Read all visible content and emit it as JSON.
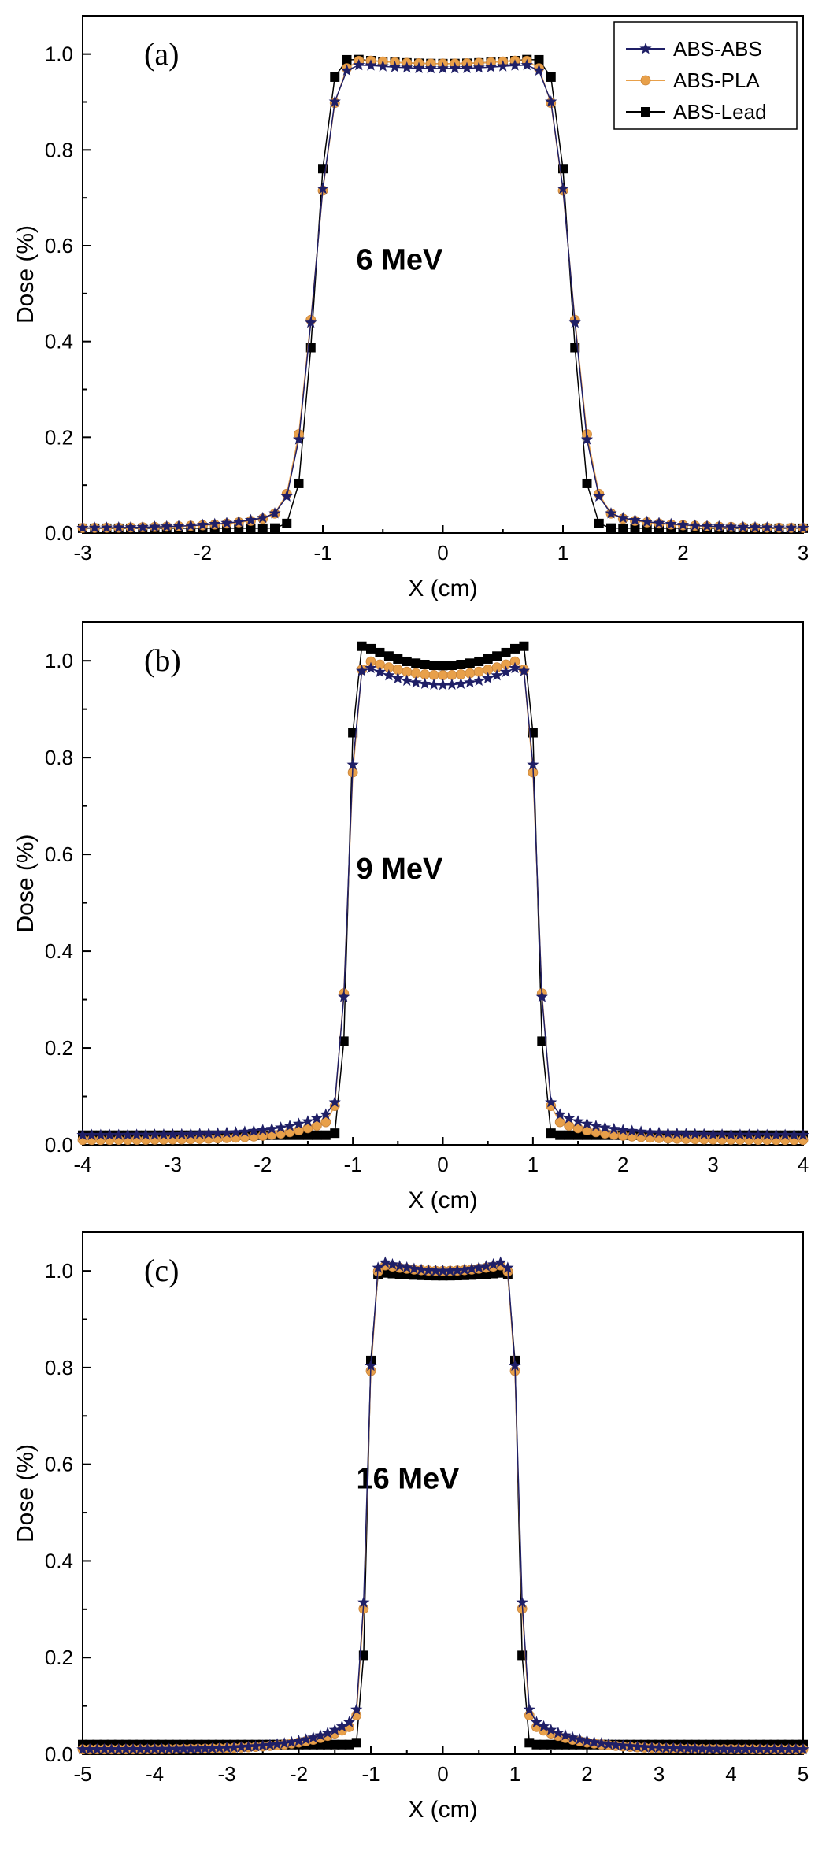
{
  "legend": {
    "entries": [
      {
        "name": "ABS-ABS",
        "color": "#1f1f66",
        "marker": "star"
      },
      {
        "name": "ABS-PLA",
        "color": "#e8a04a",
        "marker": "circle"
      },
      {
        "name": "ABS-Lead",
        "color": "#000000",
        "marker": "square"
      }
    ]
  },
  "chart_data": [
    {
      "type": "line",
      "panel": "(a)",
      "annotation": "6 MeV",
      "xlabel": "X (cm)",
      "ylabel": "Dose (%)",
      "xlim": [
        -3,
        3
      ],
      "ylim": [
        0,
        1.08
      ],
      "xticks": [
        "-3",
        "-2",
        "-1",
        "0",
        "1",
        "2",
        "3"
      ],
      "yticks": [
        "0.0",
        "0.2",
        "0.4",
        "0.6",
        "0.8",
        "1.0"
      ],
      "profiles": [
        {
          "name": "ABS-ABS",
          "halfwidth": 1.07,
          "edge": 0.18,
          "tail": 0.055,
          "tail_decay": 0.45,
          "base": 0.01,
          "top": 0.97,
          "horn": 0.02
        },
        {
          "name": "ABS-PLA",
          "halfwidth": 1.07,
          "edge": 0.19,
          "tail": 0.05,
          "tail_decay": 0.45,
          "base": 0.01,
          "top": 0.98,
          "horn": 0.02
        },
        {
          "name": "ABS-Lead",
          "halfwidth": 1.07,
          "edge": 0.14,
          "tail": 0.0,
          "tail_decay": 0.5,
          "base": 0.01,
          "top": 0.98,
          "horn": 0.02
        }
      ]
    },
    {
      "type": "line",
      "panel": "(b)",
      "annotation": "9 MeV",
      "xlabel": "X (cm)",
      "ylabel": "Dose (%)",
      "xlim": [
        -4,
        4
      ],
      "ylim": [
        0,
        1.08
      ],
      "xticks": [
        "-4",
        "-3",
        "-2",
        "-1",
        "0",
        "1",
        "2",
        "3",
        "4"
      ],
      "yticks": [
        "0.0",
        "0.2",
        "0.4",
        "0.6",
        "0.8",
        "1.0"
      ],
      "profiles": [
        {
          "name": "ABS-ABS",
          "halfwidth": 1.05,
          "edge": 0.1,
          "tail": 0.07,
          "tail_decay": 0.5,
          "base": 0.02,
          "top": 0.95,
          "horn": 0.06
        },
        {
          "name": "ABS-PLA",
          "halfwidth": 1.05,
          "edge": 0.11,
          "tail": 0.06,
          "tail_decay": 0.5,
          "base": 0.01,
          "top": 0.97,
          "horn": 0.05
        },
        {
          "name": "ABS-Lead",
          "halfwidth": 1.05,
          "edge": 0.08,
          "tail": 0.0,
          "tail_decay": 0.5,
          "base": 0.02,
          "top": 0.99,
          "horn": 0.06
        }
      ]
    },
    {
      "type": "line",
      "panel": "(c)",
      "annotation": "16 MeV",
      "xlabel": "X (cm)",
      "ylabel": "Dose (%)",
      "xlim": [
        -5,
        5
      ],
      "ylim": [
        0,
        1.08
      ],
      "xticks": [
        "-5",
        "-4",
        "-3",
        "-2",
        "-1",
        "0",
        "1",
        "2",
        "3",
        "4",
        "5"
      ],
      "yticks": [
        "0.0",
        "0.2",
        "0.4",
        "0.6",
        "0.8",
        "1.0"
      ],
      "profiles": [
        {
          "name": "ABS-ABS",
          "halfwidth": 1.05,
          "edge": 0.1,
          "tail": 0.085,
          "tail_decay": 0.6,
          "base": 0.01,
          "top": 1.0,
          "horn": 0.03
        },
        {
          "name": "ABS-PLA",
          "halfwidth": 1.05,
          "edge": 0.1,
          "tail": 0.07,
          "tail_decay": 0.6,
          "base": 0.01,
          "top": 1.0,
          "horn": 0.02
        },
        {
          "name": "ABS-Lead",
          "halfwidth": 1.05,
          "edge": 0.08,
          "tail": 0.0,
          "tail_decay": 0.6,
          "base": 0.02,
          "top": 0.99,
          "horn": 0.01
        }
      ]
    }
  ]
}
